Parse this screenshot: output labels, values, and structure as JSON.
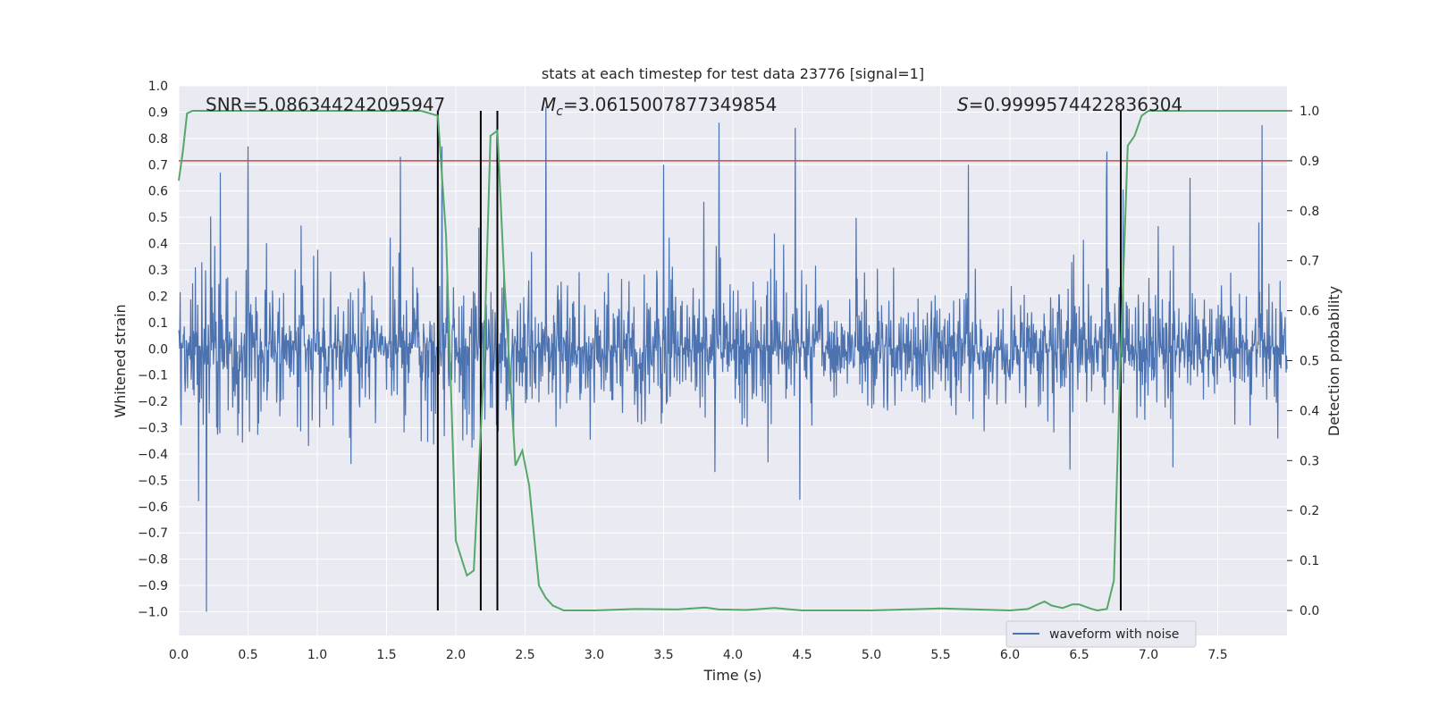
{
  "chart_data": {
    "type": "line",
    "title": "stats at each timestep for test data 23776 [signal=1]",
    "xlabel": "Time (s)",
    "ylabel_left": "Whitened strain",
    "ylabel_right": "Detection probability",
    "xlim": [
      0.0,
      8.0
    ],
    "ylim_left": [
      -1.09,
      1.0
    ],
    "ylim_right": [
      -0.05,
      1.05
    ],
    "grid": true,
    "xticks": [
      "0.0",
      "0.5",
      "1.0",
      "1.5",
      "2.0",
      "2.5",
      "3.0",
      "3.5",
      "4.0",
      "4.5",
      "5.0",
      "5.5",
      "6.0",
      "6.5",
      "7.0",
      "7.5"
    ],
    "yticks_left": [
      "1.0",
      "0.9",
      "0.8",
      "0.7",
      "0.6",
      "0.5",
      "0.4",
      "0.3",
      "0.2",
      "0.1",
      "0.0",
      "−0.1",
      "−0.2",
      "−0.3",
      "−0.4",
      "−0.5",
      "−0.6",
      "−0.7",
      "−0.8",
      "−0.9",
      "−1.0"
    ],
    "yticks_right": [
      "1.0",
      "0.9",
      "0.8",
      "0.7",
      "0.6",
      "0.5",
      "0.4",
      "0.3",
      "0.2",
      "0.1",
      "0.0"
    ],
    "annotations": {
      "snr": "SNR=5.086344242095947",
      "mc_symbol": "M",
      "mc_sub": "c",
      "mc_value": "=3.0615007877349854",
      "s_symbol": "S",
      "s_value": "=0.9999574422836304"
    },
    "threshold": {
      "value": 0.9,
      "axis": "right",
      "color": "#c44e52"
    },
    "vertical_lines": [
      1.87,
      2.18,
      2.3,
      6.8
    ],
    "legend": {
      "label": "waveform with noise",
      "position": "lower-right"
    },
    "series": [
      {
        "name": "waveform with noise",
        "axis": "left",
        "color": "#4c72b0",
        "kind": "noise",
        "amplitude_envelope": 0.3,
        "peak_times": [
          0.2,
          0.3,
          0.5,
          1.6,
          1.9,
          2.65,
          3.5,
          3.9,
          4.45,
          5.7,
          6.7,
          7.3,
          7.82
        ],
        "peak_values": [
          -1.0,
          0.67,
          0.77,
          0.73,
          0.77,
          0.92,
          0.7,
          0.86,
          0.84,
          0.7,
          0.75,
          0.65,
          0.85
        ]
      },
      {
        "name": "Detection probability",
        "axis": "right",
        "color": "#55a868",
        "x": [
          0.0,
          0.03,
          0.06,
          0.1,
          0.2,
          0.5,
          1.0,
          1.5,
          1.75,
          1.87,
          1.93,
          2.0,
          2.08,
          2.13,
          2.2,
          2.25,
          2.3,
          2.35,
          2.43,
          2.48,
          2.53,
          2.6,
          2.65,
          2.7,
          2.78,
          2.85,
          3.0,
          3.3,
          3.6,
          3.8,
          3.9,
          4.1,
          4.3,
          4.5,
          5.0,
          5.5,
          6.0,
          6.13,
          6.2,
          6.25,
          6.3,
          6.38,
          6.45,
          6.5,
          6.58,
          6.63,
          6.7,
          6.75,
          6.8,
          6.85,
          6.9,
          6.95,
          7.0,
          7.05,
          7.5,
          8.0
        ],
        "y": [
          0.86,
          0.92,
          0.995,
          1.0,
          1.0,
          1.0,
          1.0,
          1.0,
          1.0,
          0.99,
          0.75,
          0.14,
          0.07,
          0.08,
          0.47,
          0.95,
          0.96,
          0.66,
          0.29,
          0.32,
          0.25,
          0.05,
          0.025,
          0.01,
          0.0,
          0.0,
          0.0,
          0.003,
          0.002,
          0.006,
          0.002,
          0.001,
          0.005,
          0.0,
          0.0,
          0.004,
          0.0,
          0.003,
          0.012,
          0.018,
          0.01,
          0.005,
          0.012,
          0.012,
          0.004,
          0.0,
          0.003,
          0.06,
          0.52,
          0.93,
          0.95,
          0.99,
          1.0,
          1.0,
          1.0,
          1.0
        ]
      }
    ]
  }
}
